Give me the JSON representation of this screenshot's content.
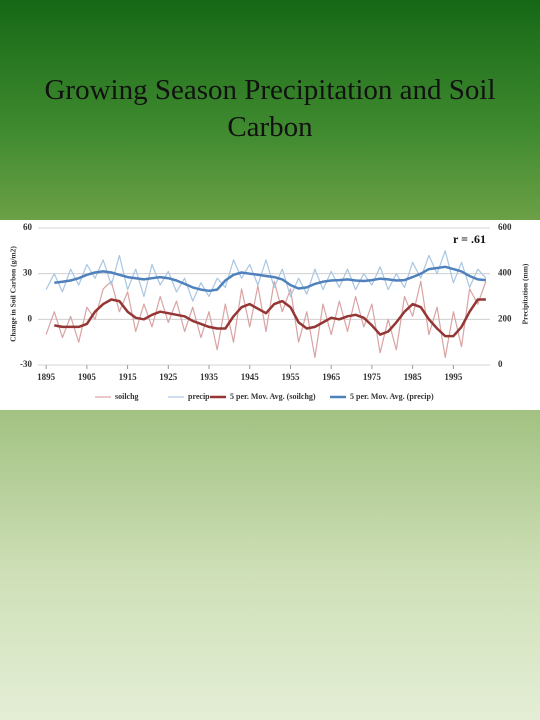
{
  "chart_data": {
    "type": "line",
    "title": "Growing Season Precipitation and Soil Carbon",
    "ylabel": "Change in Soil Carbon (g/m2)",
    "y2label": "Precipitation (mm)",
    "annotation": "r = .61",
    "x": [
      1895,
      1897,
      1899,
      1901,
      1903,
      1905,
      1907,
      1909,
      1911,
      1913,
      1915,
      1917,
      1919,
      1921,
      1923,
      1925,
      1927,
      1929,
      1931,
      1933,
      1935,
      1937,
      1939,
      1941,
      1943,
      1945,
      1947,
      1949,
      1951,
      1953,
      1955,
      1957,
      1959,
      1961,
      1963,
      1965,
      1967,
      1969,
      1971,
      1973,
      1975,
      1977,
      1979,
      1981,
      1983,
      1985,
      1987,
      1989,
      1991,
      1993,
      1995,
      1997,
      1999,
      2001,
      2003
    ],
    "xlim": [
      1893,
      2004
    ],
    "xticks": [
      1895,
      1905,
      1915,
      1925,
      1935,
      1945,
      1955,
      1965,
      1975,
      1985,
      1995
    ],
    "ylim": [
      -30,
      60
    ],
    "yticks": [
      -30,
      0,
      30,
      60
    ],
    "y2lim": [
      0,
      600
    ],
    "y2ticks": [
      0,
      200,
      400,
      600
    ],
    "grid": true,
    "legend": "bottom",
    "series": [
      {
        "name": "soilchg",
        "color": "#d9a3a3",
        "width": 1.2,
        "values": [
          -10,
          5,
          -12,
          2,
          -15,
          8,
          0,
          20,
          25,
          5,
          18,
          -8,
          10,
          -5,
          15,
          -2,
          12,
          -8,
          8,
          -12,
          5,
          -20,
          10,
          -15,
          20,
          -5,
          22,
          -8,
          25,
          5,
          20,
          -15,
          5,
          -25,
          10,
          -10,
          12,
          -8,
          15,
          -5,
          10,
          -22,
          0,
          -20,
          15,
          2,
          25,
          -10,
          8,
          -25,
          5,
          -18,
          20,
          10,
          25
        ]
      },
      {
        "name": "precip",
        "color": "#a9c6e2",
        "width": 1.2,
        "axis": "y2",
        "values": [
          330,
          400,
          320,
          420,
          350,
          440,
          380,
          460,
          350,
          480,
          330,
          420,
          300,
          440,
          350,
          410,
          320,
          380,
          280,
          360,
          300,
          380,
          340,
          460,
          380,
          440,
          350,
          460,
          340,
          420,
          300,
          380,
          310,
          420,
          330,
          410,
          340,
          420,
          330,
          400,
          350,
          430,
          330,
          400,
          340,
          450,
          380,
          480,
          400,
          500,
          360,
          450,
          340,
          420,
          380
        ]
      },
      {
        "name": "5 per. Mov. Avg. (soilchg)",
        "color": "#943634",
        "width": 2.5,
        "values": [
          null,
          -4,
          -5,
          -5,
          -5,
          -3,
          5,
          10,
          13,
          12,
          5,
          1,
          0,
          3,
          5,
          4,
          3,
          2,
          -1,
          -3,
          -5,
          -6,
          -6,
          2,
          8,
          10,
          7,
          4,
          10,
          12,
          8,
          -2,
          -6,
          -5,
          -2,
          1,
          0,
          2,
          3,
          1,
          -4,
          -10,
          -8,
          -2,
          5,
          10,
          8,
          0,
          -6,
          -11,
          -11,
          -5,
          5,
          13,
          13
        ]
      },
      {
        "name": "5 per. Mov. Avg. (precip)",
        "color": "#4f81bd",
        "width": 2.5,
        "axis": "y2",
        "values": [
          null,
          360,
          365,
          370,
          380,
          395,
          405,
          410,
          405,
          395,
          385,
          380,
          375,
          380,
          385,
          380,
          370,
          355,
          340,
          330,
          325,
          330,
          370,
          395,
          405,
          400,
          395,
          390,
          385,
          375,
          350,
          335,
          340,
          355,
          365,
          370,
          372,
          375,
          370,
          368,
          372,
          378,
          375,
          370,
          372,
          385,
          400,
          420,
          425,
          430,
          420,
          410,
          390,
          375,
          372
        ]
      }
    ]
  }
}
